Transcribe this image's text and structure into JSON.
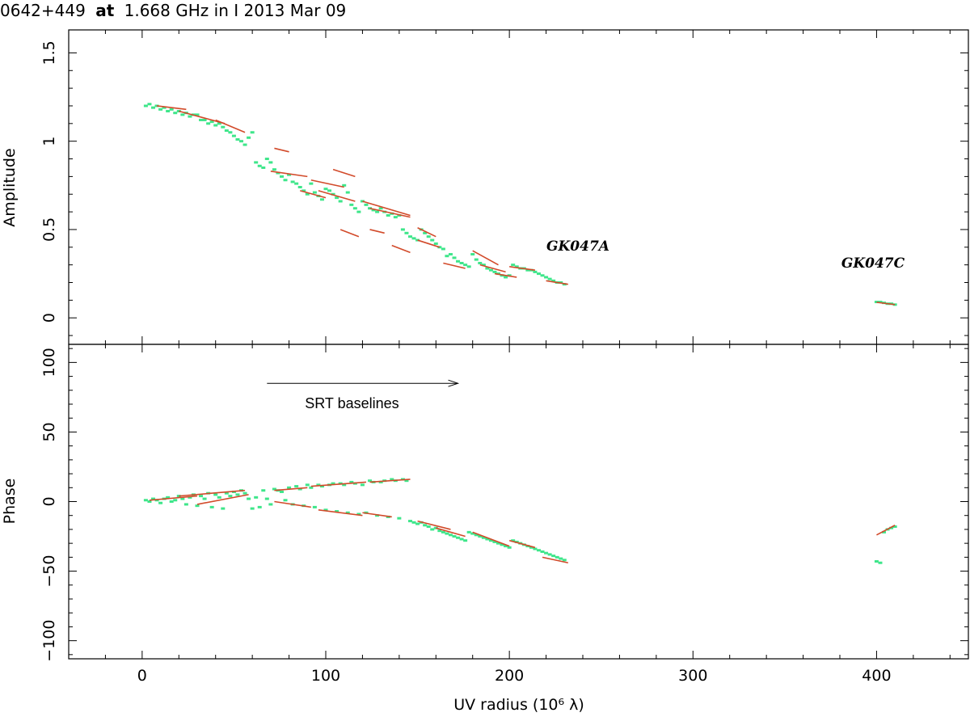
{
  "title": {
    "source": "0642+449",
    "at_word": "at",
    "rest": "1.668 GHz in I  2013 Mar 09"
  },
  "colors": {
    "data_points": "#3ee68a",
    "model": "#d24a2a",
    "axes": "#000000"
  },
  "chart_data": [
    {
      "type": "scatter",
      "panel": "amplitude",
      "ylabel": "Amplitude",
      "xlim": [
        -40,
        450
      ],
      "ylim": [
        -0.15,
        1.63
      ],
      "x_ticks": [
        0,
        100,
        200,
        300,
        400
      ],
      "y_ticks": [
        0,
        0.5,
        1,
        1.5
      ],
      "y_tick_labels": [
        "0",
        "0.5",
        "1",
        "1.5"
      ],
      "annotations": [
        {
          "text": "GK047A",
          "x": 238,
          "y": 0.4
        },
        {
          "text": "GK047C",
          "x": 398,
          "y": 0.3
        }
      ],
      "points_x": [
        2,
        4,
        6,
        8,
        10,
        12,
        14,
        16,
        18,
        20,
        22,
        24,
        26,
        28,
        30,
        32,
        34,
        36,
        38,
        40,
        42,
        44,
        46,
        48,
        50,
        52,
        54,
        56,
        58,
        60,
        62,
        64,
        66,
        68,
        70,
        72,
        74,
        76,
        78,
        80,
        82,
        84,
        86,
        88,
        90,
        92,
        94,
        96,
        98,
        100,
        102,
        104,
        106,
        108,
        110,
        112,
        114,
        116,
        118,
        120,
        122,
        124,
        126,
        128,
        130,
        132,
        134,
        136,
        138,
        140,
        142,
        144,
        146,
        148,
        150,
        152,
        154,
        156,
        158,
        160,
        162,
        164,
        166,
        168,
        170,
        172,
        174,
        176,
        178,
        180,
        182,
        184,
        186,
        188,
        190,
        192,
        194,
        196,
        198,
        200,
        202,
        204,
        206,
        208,
        210,
        212,
        214,
        216,
        218,
        220,
        222,
        224,
        226,
        228,
        230,
        400,
        402,
        404,
        406,
        408,
        410
      ],
      "points_y": [
        1.2,
        1.21,
        1.19,
        1.2,
        1.18,
        1.19,
        1.17,
        1.18,
        1.16,
        1.17,
        1.15,
        1.16,
        1.14,
        1.15,
        1.15,
        1.12,
        1.12,
        1.1,
        1.11,
        1.09,
        1.1,
        1.08,
        1.06,
        1.05,
        1.03,
        1.01,
        1.0,
        0.98,
        1.02,
        1.05,
        0.88,
        0.86,
        0.85,
        0.9,
        0.88,
        0.84,
        0.82,
        0.8,
        0.78,
        0.81,
        0.77,
        0.76,
        0.74,
        0.72,
        0.7,
        0.76,
        0.71,
        0.69,
        0.67,
        0.73,
        0.72,
        0.7,
        0.68,
        0.66,
        0.75,
        0.71,
        0.64,
        0.62,
        0.6,
        0.66,
        0.64,
        0.62,
        0.61,
        0.6,
        0.62,
        0.6,
        0.58,
        0.59,
        0.57,
        0.58,
        0.5,
        0.48,
        0.46,
        0.45,
        0.44,
        0.5,
        0.48,
        0.46,
        0.44,
        0.42,
        0.4,
        0.39,
        0.35,
        0.36,
        0.34,
        0.32,
        0.31,
        0.3,
        0.29,
        0.36,
        0.33,
        0.31,
        0.3,
        0.28,
        0.27,
        0.26,
        0.25,
        0.24,
        0.23,
        0.24,
        0.3,
        0.29,
        0.28,
        0.28,
        0.27,
        0.27,
        0.26,
        0.25,
        0.24,
        0.23,
        0.22,
        0.21,
        0.2,
        0.2,
        0.19,
        0.09,
        0.09,
        0.085,
        0.08,
        0.08,
        0.075
      ],
      "model_segments": [
        {
          "x": [
            8,
            24
          ],
          "y": [
            1.2,
            1.18
          ]
        },
        {
          "x": [
            20,
            45
          ],
          "y": [
            1.17,
            1.1
          ]
        },
        {
          "x": [
            40,
            56
          ],
          "y": [
            1.12,
            1.05
          ]
        },
        {
          "x": [
            72,
            80
          ],
          "y": [
            0.96,
            0.94
          ]
        },
        {
          "x": [
            70,
            90
          ],
          "y": [
            0.83,
            0.8
          ]
        },
        {
          "x": [
            86,
            100
          ],
          "y": [
            0.72,
            0.68
          ]
        },
        {
          "x": [
            92,
            110
          ],
          "y": [
            0.78,
            0.74
          ]
        },
        {
          "x": [
            96,
            116
          ],
          "y": [
            0.72,
            0.66
          ]
        },
        {
          "x": [
            104,
            116
          ],
          "y": [
            0.84,
            0.8
          ]
        },
        {
          "x": [
            120,
            146
          ],
          "y": [
            0.66,
            0.58
          ]
        },
        {
          "x": [
            124,
            146
          ],
          "y": [
            0.62,
            0.57
          ]
        },
        {
          "x": [
            108,
            118
          ],
          "y": [
            0.5,
            0.46
          ]
        },
        {
          "x": [
            124,
            132
          ],
          "y": [
            0.5,
            0.48
          ]
        },
        {
          "x": [
            136,
            146
          ],
          "y": [
            0.41,
            0.37
          ]
        },
        {
          "x": [
            150,
            160
          ],
          "y": [
            0.51,
            0.46
          ]
        },
        {
          "x": [
            150,
            162
          ],
          "y": [
            0.44,
            0.4
          ]
        },
        {
          "x": [
            164,
            176
          ],
          "y": [
            0.31,
            0.28
          ]
        },
        {
          "x": [
            180,
            194
          ],
          "y": [
            0.38,
            0.3
          ]
        },
        {
          "x": [
            184,
            198
          ],
          "y": [
            0.3,
            0.26
          ]
        },
        {
          "x": [
            192,
            204
          ],
          "y": [
            0.25,
            0.23
          ]
        },
        {
          "x": [
            200,
            214
          ],
          "y": [
            0.29,
            0.27
          ]
        },
        {
          "x": [
            220,
            232
          ],
          "y": [
            0.21,
            0.19
          ]
        },
        {
          "x": [
            400,
            410
          ],
          "y": [
            0.088,
            0.075
          ]
        }
      ]
    },
    {
      "type": "scatter",
      "panel": "phase",
      "ylabel": "Phase",
      "xlabel": "UV radius  (10⁶ λ)",
      "xlim": [
        -40,
        450
      ],
      "ylim": [
        -113,
        113
      ],
      "x_ticks": [
        0,
        100,
        200,
        300,
        400
      ],
      "x_tick_labels": [
        "0",
        "100",
        "200",
        "300",
        "400"
      ],
      "y_ticks": [
        -100,
        -50,
        0,
        50,
        100
      ],
      "y_tick_labels": [
        "−100",
        "−50",
        "0",
        "50",
        "100"
      ],
      "arrow": {
        "x_from": 68,
        "x_to": 172,
        "y": 85,
        "label": "SRT baselines"
      },
      "points_x": [
        2,
        4,
        6,
        8,
        10,
        12,
        14,
        16,
        18,
        20,
        22,
        24,
        26,
        28,
        30,
        32,
        34,
        36,
        38,
        40,
        42,
        44,
        46,
        48,
        50,
        52,
        54,
        56,
        58,
        60,
        62,
        64,
        66,
        68,
        70,
        72,
        74,
        76,
        78,
        80,
        82,
        84,
        86,
        88,
        90,
        92,
        94,
        96,
        98,
        100,
        102,
        104,
        106,
        108,
        110,
        112,
        114,
        116,
        118,
        120,
        122,
        124,
        126,
        128,
        130,
        132,
        134,
        136,
        138,
        140,
        142,
        144,
        146,
        148,
        150,
        152,
        154,
        156,
        158,
        160,
        162,
        164,
        166,
        168,
        170,
        172,
        174,
        176,
        178,
        180,
        182,
        184,
        186,
        188,
        190,
        192,
        194,
        196,
        198,
        200,
        202,
        204,
        206,
        208,
        210,
        212,
        214,
        216,
        218,
        220,
        222,
        224,
        226,
        228,
        230,
        400,
        402,
        404,
        406,
        408,
        410
      ],
      "points_y": [
        1,
        0,
        2,
        1,
        -1,
        2,
        3,
        0,
        1,
        4,
        2,
        -2,
        3,
        5,
        -3,
        4,
        2,
        6,
        -4,
        5,
        3,
        -5,
        6,
        4,
        7,
        5,
        8,
        6,
        2,
        -5,
        3,
        -4,
        8,
        2,
        -2,
        9,
        8,
        7,
        1,
        10,
        -2,
        11,
        9,
        -3,
        12,
        10,
        -4,
        12,
        11,
        -6,
        12,
        13,
        -7,
        13,
        12,
        -8,
        14,
        13,
        -9,
        12,
        -8,
        15,
        14,
        -10,
        14,
        15,
        -11,
        16,
        15,
        -12,
        16,
        15,
        -14,
        -15,
        -16,
        -15,
        -17,
        -18,
        -20,
        -19,
        -21,
        -22,
        -23,
        -24,
        -25,
        -26,
        -27,
        -28,
        -22,
        -23,
        -24,
        -25,
        -26,
        -27,
        -28,
        -29,
        -30,
        -31,
        -32,
        -33,
        -28,
        -29,
        -30,
        -31,
        -32,
        -33,
        -34,
        -35,
        -36,
        -37,
        -38,
        -39,
        -40,
        -41,
        -42,
        -43,
        -44,
        -22,
        -20,
        -19,
        -18,
        -17,
        -16
      ],
      "model_segments": [
        {
          "x": [
            4,
            30
          ],
          "y": [
            1,
            4
          ]
        },
        {
          "x": [
            20,
            56
          ],
          "y": [
            4,
            8
          ]
        },
        {
          "x": [
            30,
            58
          ],
          "y": [
            -2,
            5
          ]
        },
        {
          "x": [
            72,
            90
          ],
          "y": [
            8,
            10
          ]
        },
        {
          "x": [
            92,
            122
          ],
          "y": [
            11,
            14
          ]
        },
        {
          "x": [
            124,
            146
          ],
          "y": [
            14,
            16
          ]
        },
        {
          "x": [
            72,
            92
          ],
          "y": [
            0,
            -4
          ]
        },
        {
          "x": [
            96,
            120
          ],
          "y": [
            -6,
            -10
          ]
        },
        {
          "x": [
            120,
            136
          ],
          "y": [
            -8,
            -11
          ]
        },
        {
          "x": [
            150,
            168
          ],
          "y": [
            -14,
            -20
          ]
        },
        {
          "x": [
            160,
            176
          ],
          "y": [
            -19,
            -25
          ]
        },
        {
          "x": [
            180,
            200
          ],
          "y": [
            -22,
            -32
          ]
        },
        {
          "x": [
            200,
            214
          ],
          "y": [
            -28,
            -33
          ]
        },
        {
          "x": [
            218,
            232
          ],
          "y": [
            -40,
            -44
          ]
        },
        {
          "x": [
            400,
            410
          ],
          "y": [
            -24,
            -17
          ]
        }
      ]
    }
  ]
}
